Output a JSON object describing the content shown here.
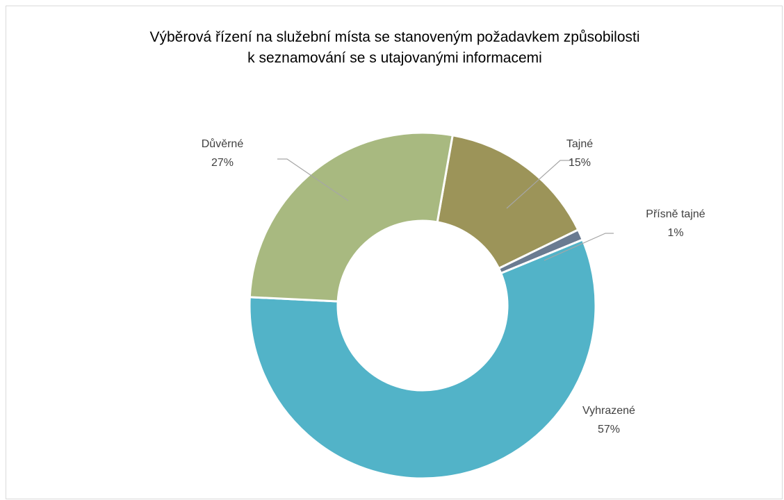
{
  "chart_data": {
    "type": "pie",
    "donut": true,
    "title": [
      "Výběrová řízení na služební místa se stanoveným požadavkem způsobilosti",
      "k seznamování se s utajovanými informacemi"
    ],
    "slices": [
      {
        "name": "Tajné",
        "value": 15,
        "label": "15%",
        "color": "#9c9459"
      },
      {
        "name": "Přísně tajné",
        "value": 1,
        "label": "1%",
        "color": "#6a7b91"
      },
      {
        "name": "Vyhrazené",
        "value": 57,
        "label": "57%",
        "color": "#52b3c8"
      },
      {
        "name": "Důvěrné",
        "value": 27,
        "label": "27%",
        "color": "#a8b980"
      }
    ],
    "legend": "none",
    "label_placement": "outside with leader lines"
  }
}
